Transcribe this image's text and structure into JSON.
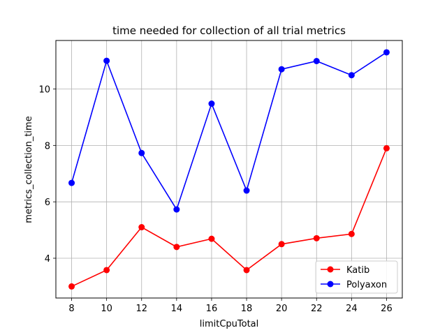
{
  "chart_data": {
    "type": "line",
    "title": "time needed for collection of all trial metrics",
    "xlabel": "limitCpuTotal",
    "ylabel": "metrics_collection_time",
    "x": [
      8,
      10,
      12,
      14,
      16,
      18,
      20,
      22,
      24,
      26
    ],
    "xticks": [
      "8",
      "10",
      "12",
      "14",
      "16",
      "18",
      "20",
      "22",
      "24",
      "26"
    ],
    "yticks": [
      "4",
      "6",
      "8",
      "10"
    ],
    "xlim": [
      7.1,
      26.9
    ],
    "ylim": [
      2.59,
      11.72
    ],
    "grid": true,
    "legend_position": "lower-right",
    "series": [
      {
        "name": "Katib",
        "color": "#ff0000",
        "values": [
          3.0,
          3.58,
          5.1,
          4.4,
          4.69,
          3.58,
          4.5,
          4.71,
          4.86,
          7.9
        ]
      },
      {
        "name": "Polyaxon",
        "color": "#0000ff",
        "values": [
          6.67,
          11.0,
          7.73,
          5.73,
          9.48,
          6.4,
          10.7,
          10.99,
          10.49,
          11.3
        ]
      }
    ]
  }
}
